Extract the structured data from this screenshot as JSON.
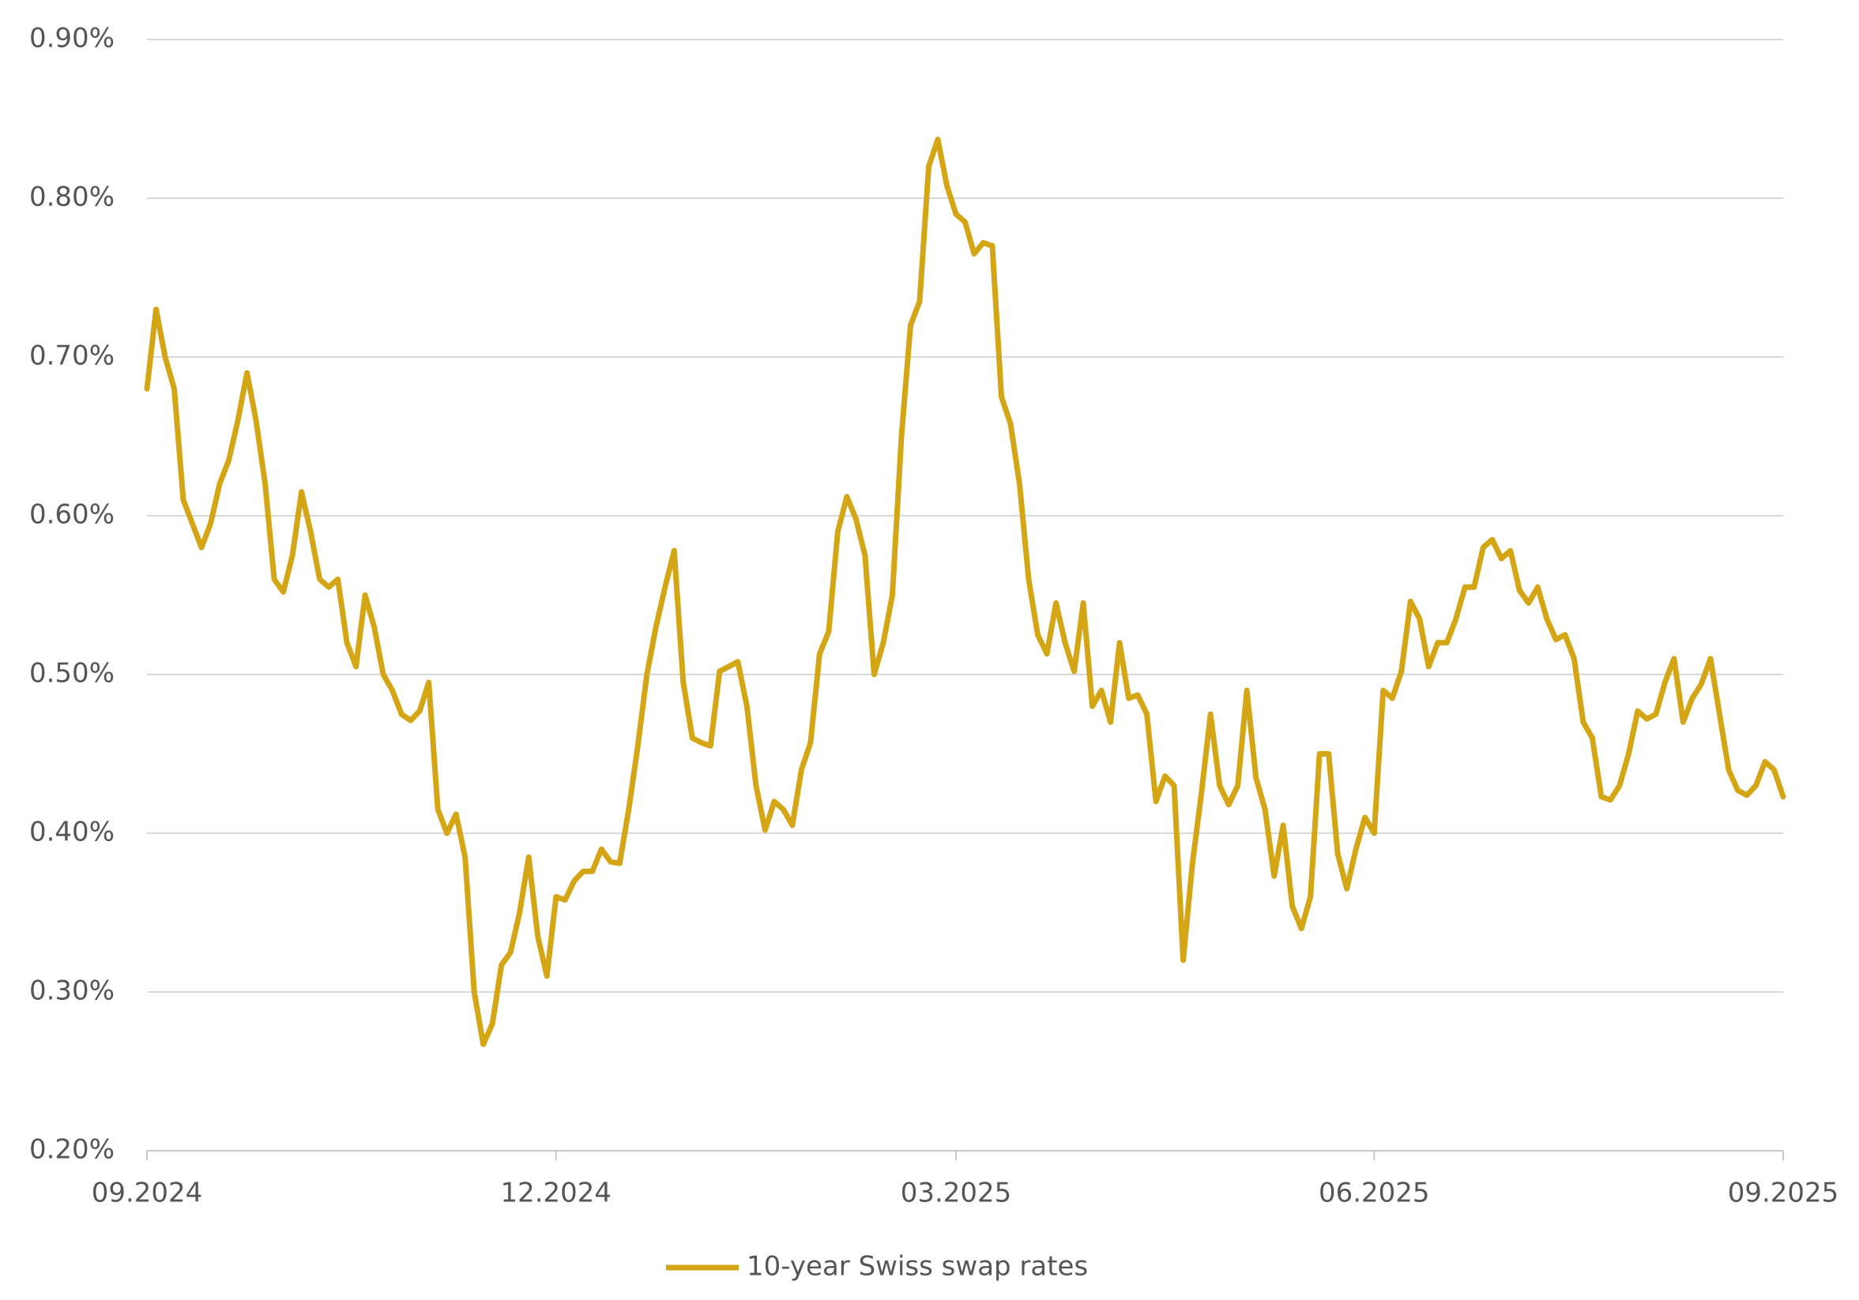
{
  "chart_data": {
    "type": "line",
    "categories": [
      "09.2024",
      null,
      null,
      null,
      null,
      null,
      null,
      null,
      null,
      null,
      null,
      null,
      null,
      null,
      null,
      null,
      null,
      null,
      null,
      null,
      null,
      null,
      null,
      null,
      null,
      null,
      null,
      null,
      null,
      null,
      null,
      null,
      null,
      null,
      null,
      null,
      null,
      null,
      null,
      null,
      null,
      null,
      null,
      null,
      null,
      "12.2024",
      null,
      null,
      null,
      null,
      null,
      null,
      null,
      null,
      null,
      null,
      null,
      null,
      null,
      null,
      null,
      null,
      null,
      null,
      null,
      null,
      null,
      null,
      null,
      null,
      null,
      null,
      null,
      null,
      null,
      null,
      null,
      null,
      null,
      null,
      null,
      null,
      null,
      null,
      null,
      null,
      null,
      null,
      null,
      "03.2025",
      null,
      null,
      null,
      null,
      null,
      null,
      null,
      null,
      null,
      null,
      null,
      null,
      null,
      null,
      null,
      null,
      null,
      null,
      null,
      null,
      null,
      null,
      null,
      null,
      null,
      null,
      null,
      null,
      null,
      null,
      null,
      null,
      null,
      null,
      null,
      null,
      null,
      null,
      null,
      null,
      null,
      null,
      null,
      null,
      null,
      "06.2025",
      null,
      null,
      null,
      null,
      null,
      null,
      null,
      null,
      null,
      null,
      null,
      null,
      null,
      null,
      null,
      null,
      null,
      null,
      null,
      null,
      null,
      null,
      null,
      null,
      null,
      null,
      null,
      null,
      null,
      null,
      null,
      null,
      null,
      null,
      null,
      null,
      null,
      null,
      null,
      null,
      null,
      null,
      null,
      null,
      "09.2025"
    ],
    "series": [
      {
        "name": "10-year Swiss swap rates",
        "color": "#d4a514",
        "values": [
          0.68,
          0.73,
          0.7,
          0.68,
          0.61,
          0.595,
          0.58,
          0.595,
          0.62,
          0.635,
          0.66,
          0.69,
          0.66,
          0.62,
          0.56,
          0.552,
          0.575,
          0.615,
          0.59,
          0.56,
          0.555,
          0.56,
          0.52,
          0.505,
          0.55,
          0.53,
          0.5,
          0.49,
          0.475,
          0.471,
          0.477,
          0.495,
          0.415,
          0.4,
          0.412,
          0.385,
          0.3,
          0.267,
          0.28,
          0.317,
          0.325,
          0.35,
          0.385,
          0.335,
          0.31,
          0.36,
          0.358,
          0.37,
          0.376,
          0.376,
          0.39,
          0.382,
          0.381,
          0.415,
          0.455,
          0.5,
          0.53,
          0.555,
          0.578,
          0.495,
          0.46,
          0.457,
          0.455,
          0.502,
          0.505,
          0.508,
          0.48,
          0.43,
          0.402,
          0.42,
          0.415,
          0.405,
          0.44,
          0.457,
          0.513,
          0.527,
          0.59,
          0.612,
          0.598,
          0.575,
          0.5,
          0.52,
          0.55,
          0.65,
          0.72,
          0.735,
          0.82,
          0.837,
          0.808,
          0.79,
          0.785,
          0.765,
          0.772,
          0.77,
          0.675,
          0.658,
          0.62,
          0.56,
          0.525,
          0.513,
          0.545,
          0.52,
          0.502,
          0.545,
          0.48,
          0.49,
          0.47,
          0.52,
          0.485,
          0.487,
          0.475,
          0.42,
          0.436,
          0.43,
          0.32,
          0.38,
          0.425,
          0.475,
          0.43,
          0.418,
          0.43,
          0.49,
          0.435,
          0.415,
          0.373,
          0.405,
          0.354,
          0.34,
          0.36,
          0.45,
          0.45,
          0.387,
          0.365,
          0.39,
          0.41,
          0.4,
          0.49,
          0.485,
          0.502,
          0.546,
          0.535,
          0.505,
          0.52,
          0.52,
          0.535,
          0.555,
          0.555,
          0.58,
          0.585,
          0.573,
          0.578,
          0.553,
          0.545,
          0.555,
          0.535,
          0.522,
          0.525,
          0.51,
          0.47,
          0.46,
          0.423,
          0.421,
          0.43,
          0.45,
          0.477,
          0.472,
          0.475,
          0.495,
          0.51,
          0.47,
          0.485,
          0.494,
          0.51,
          0.475,
          0.44,
          0.427,
          0.424,
          0.43,
          0.445,
          0.44,
          0.423
        ]
      }
    ],
    "ylim": [
      0.2,
      0.9
    ],
    "yticks": [
      {
        "value": 0.2,
        "label": "0.20%"
      },
      {
        "value": 0.3,
        "label": "0.30%"
      },
      {
        "value": 0.4,
        "label": "0.40%"
      },
      {
        "value": 0.5,
        "label": "0.50%"
      },
      {
        "value": 0.6,
        "label": "0.60%"
      },
      {
        "value": 0.7,
        "label": "0.70%"
      },
      {
        "value": 0.8,
        "label": "0.80%"
      },
      {
        "value": 0.9,
        "label": "0.90%"
      }
    ],
    "grid": true,
    "legend": "bottom"
  }
}
